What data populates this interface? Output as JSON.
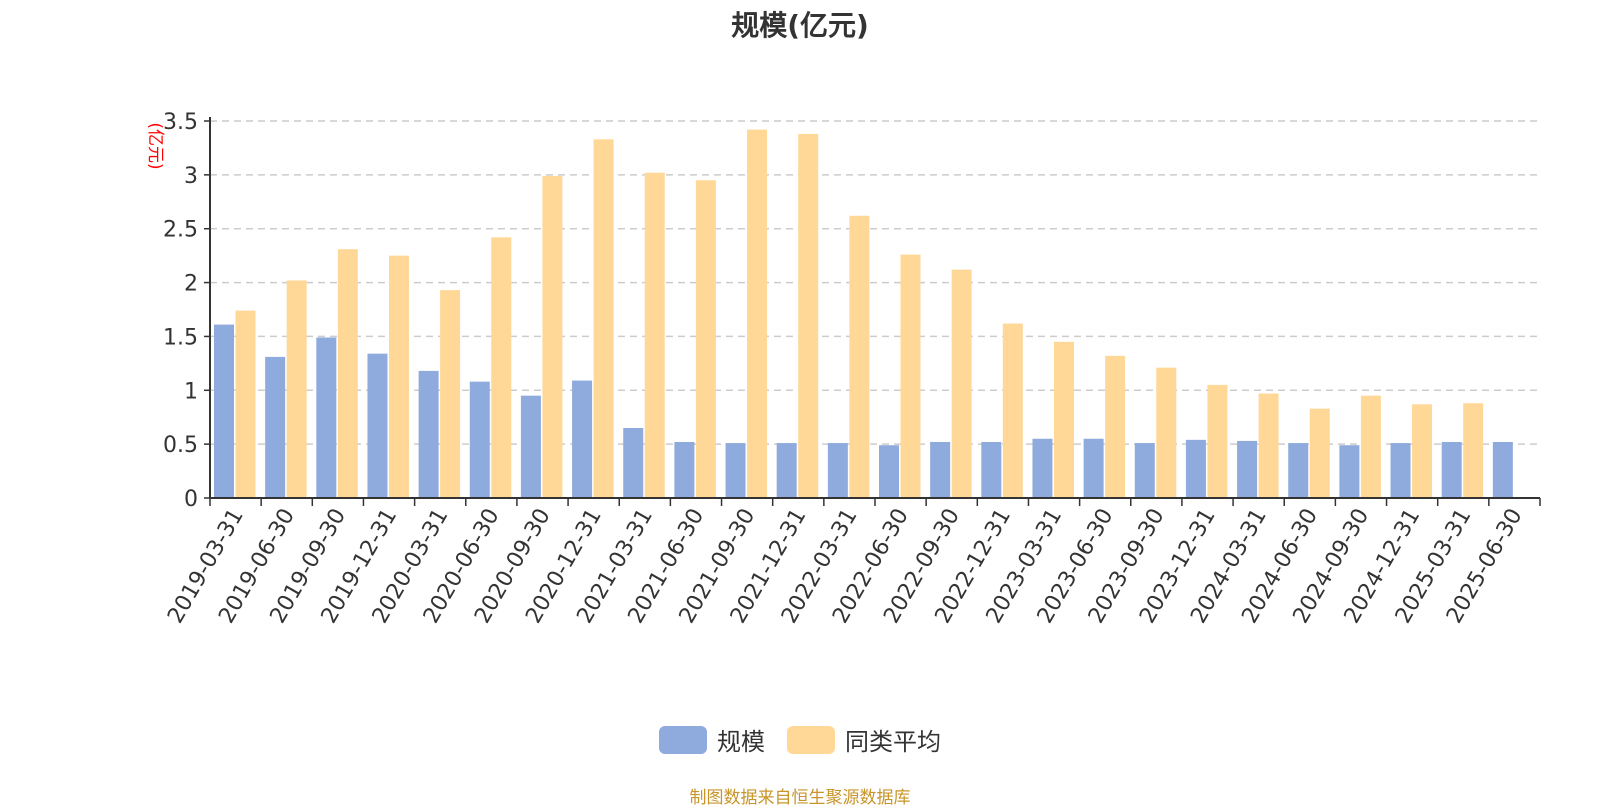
{
  "chart_data": {
    "type": "bar",
    "title": "规模(亿元)",
    "ylabel": "(亿元)",
    "xlabel": "",
    "ylim": [
      0,
      3.5
    ],
    "yticks": [
      "0",
      "0.5",
      "1",
      "1.5",
      "2",
      "2.5",
      "3",
      "3.5"
    ],
    "grid": true,
    "legend_position": "bottom-center",
    "categories": [
      "2019-03-31",
      "2019-06-30",
      "2019-09-30",
      "2019-12-31",
      "2020-03-31",
      "2020-06-30",
      "2020-09-30",
      "2020-12-31",
      "2021-03-31",
      "2021-06-30",
      "2021-09-30",
      "2021-12-31",
      "2022-03-31",
      "2022-06-30",
      "2022-09-30",
      "2022-12-31",
      "2023-03-31",
      "2023-06-30",
      "2023-09-30",
      "2023-12-31",
      "2024-03-31",
      "2024-06-30",
      "2024-09-30",
      "2024-12-31",
      "2025-03-31",
      "2025-06-30"
    ],
    "series": [
      {
        "name": "规模",
        "color": "#8faadc",
        "values": [
          1.61,
          1.31,
          1.49,
          1.34,
          1.18,
          1.08,
          0.95,
          1.09,
          0.65,
          0.52,
          0.51,
          0.51,
          0.51,
          0.49,
          0.52,
          0.52,
          0.55,
          0.55,
          0.51,
          0.54,
          0.53,
          0.51,
          0.49,
          0.51,
          0.52,
          0.52
        ]
      },
      {
        "name": "同类平均",
        "color": "#ffd898",
        "values": [
          1.74,
          2.02,
          2.31,
          2.25,
          1.93,
          2.42,
          2.99,
          3.33,
          3.02,
          2.95,
          3.42,
          3.38,
          2.62,
          2.26,
          2.12,
          1.62,
          1.45,
          1.32,
          1.21,
          1.05,
          0.97,
          0.83,
          0.95,
          0.87,
          0.88,
          null
        ]
      }
    ]
  },
  "source_note": "制图数据来自恒生聚源数据库",
  "colors": {
    "axis_label": "#ff0000",
    "source_note": "#c8952a",
    "grid": "#cccccc",
    "text": "#333333"
  }
}
